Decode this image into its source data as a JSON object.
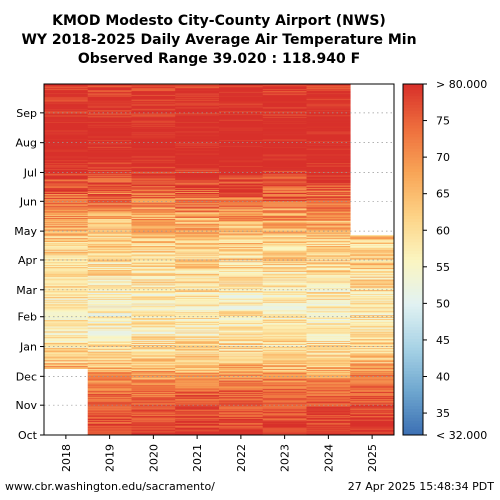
{
  "chart_data": {
    "type": "heatmap",
    "title_lines": [
      "KMOD Modesto City-County Airport (NWS)",
      "WY 2018-2025 Daily Average Air Temperature Min",
      "Observed Range 39.020 : 118.940 F"
    ],
    "x_categories": [
      "2018",
      "2019",
      "2020",
      "2021",
      "2022",
      "2023",
      "2024",
      "2025"
    ],
    "y_categories": [
      "Oct",
      "Nov",
      "Dec",
      "Jan",
      "Feb",
      "Mar",
      "Apr",
      "May",
      "Jun",
      "Jul",
      "Aug",
      "Sep"
    ],
    "colorbar": {
      "min": 32,
      "max": 80,
      "min_label": "< 32.000",
      "max_label": "> 80.000",
      "tick_labels": [
        "35",
        "40",
        "45",
        "50",
        "55",
        "60",
        "65",
        "70",
        "75"
      ],
      "colors": [
        "#3b6fb3",
        "#6ea6cf",
        "#a8d3e6",
        "#e2f2f2",
        "#fbf5c0",
        "#fdd386",
        "#f8a456",
        "#ee6e3d",
        "#d8302a"
      ]
    },
    "series_start_date": "2017-12-09",
    "series_end_date": "2025-04-26",
    "monthly_mean_min_temp": [
      78,
      74,
      63,
      57,
      57,
      60,
      62,
      68,
      77,
      82,
      82,
      80
    ]
  },
  "footer": {
    "left": "www.cbr.washington.edu/sacramento/",
    "right": "27 Apr 2025 15:48:34 PDT"
  }
}
